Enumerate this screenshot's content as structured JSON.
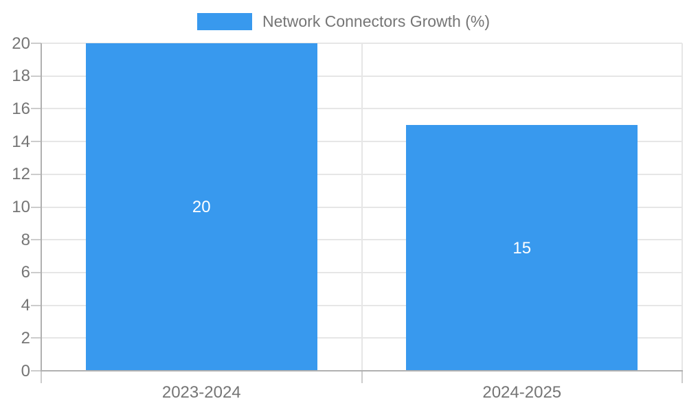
{
  "chart_data": {
    "type": "bar",
    "title": "Network Connectors Growth (%)",
    "categories": [
      "2023-2024",
      "2024-2025"
    ],
    "values": [
      20,
      15
    ],
    "bar_labels": [
      "20",
      "15"
    ],
    "ytick_labels": [
      "0",
      "2",
      "4",
      "6",
      "8",
      "10",
      "12",
      "14",
      "16",
      "18",
      "20"
    ],
    "yticks": [
      0,
      2,
      4,
      6,
      8,
      10,
      12,
      14,
      16,
      18,
      20
    ],
    "ylim": [
      0,
      20
    ],
    "xlabel": "",
    "ylabel": "",
    "grid": true,
    "legend_position": "top-center",
    "bar_label_position": "center-inside",
    "colors": {
      "bar": "#3899EE",
      "bar_label_text": "#ffffff",
      "axis_text": "#757575",
      "legend_text": "#757575",
      "gridline": "#e6e6e6",
      "axis_line": "#b0b0b0",
      "tick_mark": "#cccccc",
      "background": "#ffffff"
    }
  }
}
